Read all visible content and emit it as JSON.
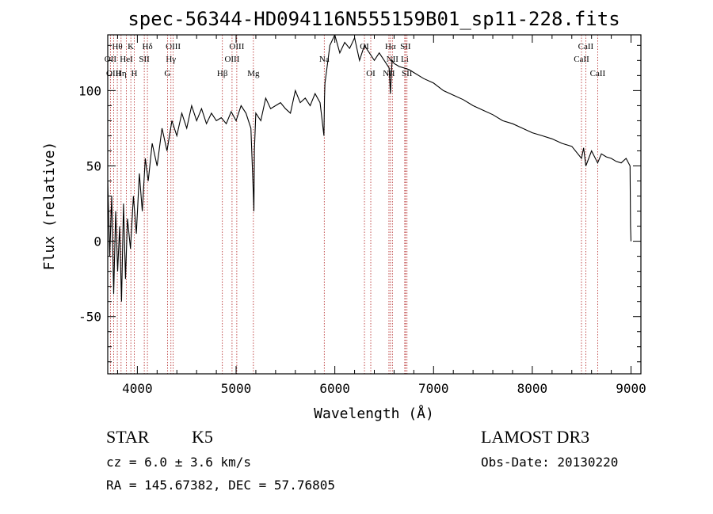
{
  "chart_data": {
    "type": "line",
    "title": "spec-56344-HD094116N555159B01_sp11-228.fits",
    "xlabel": "Wavelength (Å)",
    "ylabel": "Flux (relative)",
    "xlim": [
      3700,
      9100
    ],
    "ylim": [
      -88,
      137
    ],
    "x_ticks": [
      4000,
      5000,
      6000,
      7000,
      8000,
      9000
    ],
    "x_tick_labels": [
      "4000",
      "5000",
      "6000",
      "7000",
      "8000",
      "9000"
    ],
    "y_ticks": [
      -50,
      0,
      50,
      100
    ],
    "y_tick_labels": [
      "-50",
      "0",
      "50",
      "100"
    ],
    "series": [
      {
        "name": "flux",
        "x": [
          3700,
          3720,
          3740,
          3760,
          3780,
          3800,
          3820,
          3840,
          3860,
          3880,
          3900,
          3930,
          3960,
          3990,
          4020,
          4050,
          4080,
          4110,
          4150,
          4200,
          4250,
          4300,
          4350,
          4400,
          4450,
          4500,
          4550,
          4600,
          4650,
          4700,
          4750,
          4800,
          4850,
          4900,
          4950,
          5000,
          5050,
          5100,
          5150,
          5170,
          5180,
          5185,
          5200,
          5250,
          5300,
          5350,
          5400,
          5450,
          5500,
          5550,
          5600,
          5650,
          5700,
          5750,
          5800,
          5850,
          5890,
          5895,
          5900,
          5920,
          5950,
          6000,
          6050,
          6100,
          6150,
          6200,
          6250,
          6300,
          6350,
          6400,
          6450,
          6500,
          6550,
          6563,
          6580,
          6600,
          6650,
          6700,
          6750,
          6800,
          6900,
          7000,
          7100,
          7200,
          7300,
          7400,
          7500,
          7600,
          7700,
          7800,
          7900,
          8000,
          8100,
          8200,
          8300,
          8400,
          8498,
          8520,
          8542,
          8600,
          8662,
          8700,
          8750,
          8800,
          8850,
          8900,
          8950,
          8990,
          8995,
          9000
        ],
        "y": [
          40,
          -10,
          30,
          -35,
          20,
          -20,
          10,
          -40,
          25,
          -25,
          15,
          -5,
          30,
          5,
          45,
          20,
          55,
          40,
          65,
          50,
          75,
          60,
          80,
          70,
          85,
          75,
          90,
          80,
          88,
          78,
          85,
          80,
          82,
          78,
          86,
          80,
          90,
          85,
          75,
          40,
          20,
          60,
          85,
          80,
          95,
          88,
          90,
          92,
          88,
          85,
          100,
          92,
          95,
          90,
          98,
          92,
          70,
          95,
          105,
          115,
          130,
          137,
          125,
          132,
          128,
          135,
          120,
          130,
          125,
          120,
          125,
          120,
          115,
          98,
          120,
          118,
          116,
          115,
          114,
          112,
          108,
          105,
          100,
          97,
          94,
          90,
          87,
          84,
          80,
          78,
          75,
          72,
          70,
          68,
          65,
          63,
          55,
          62,
          50,
          60,
          52,
          58,
          56,
          55,
          53,
          52,
          55,
          50,
          10,
          0
        ]
      }
    ],
    "line_markers": [
      {
        "label": "Hθ",
        "x": 3797,
        "row": 1
      },
      {
        "label": "OII",
        "x": 3727,
        "row": 2
      },
      {
        "label": "OIII",
        "x": 3760,
        "row": 3
      },
      {
        "label": "Hη",
        "x": 3835,
        "row": 3
      },
      {
        "label": "HeI",
        "x": 3889,
        "row": 2
      },
      {
        "label": "K",
        "x": 3934,
        "row": 1
      },
      {
        "label": "H",
        "x": 3969,
        "row": 3
      },
      {
        "label": "SII",
        "x": 4070,
        "row": 2
      },
      {
        "label": "Hδ",
        "x": 4102,
        "row": 1
      },
      {
        "label": "OIII",
        "x": 4363,
        "row": 1
      },
      {
        "label": "Hγ",
        "x": 4340,
        "row": 2
      },
      {
        "label": "G",
        "x": 4305,
        "row": 3
      },
      {
        "label": "Hβ",
        "x": 4861,
        "row": 3
      },
      {
        "label": "OIII",
        "x": 5007,
        "row": 1
      },
      {
        "label": "OIII",
        "x": 4959,
        "row": 2
      },
      {
        "label": "Mg",
        "x": 5175,
        "row": 3
      },
      {
        "label": "Na",
        "x": 5893,
        "row": 2
      },
      {
        "label": "OI",
        "x": 6300,
        "row": 1
      },
      {
        "label": "OI",
        "x": 6364,
        "row": 3
      },
      {
        "label": "Hα",
        "x": 6563,
        "row": 1
      },
      {
        "label": "SII",
        "x": 6716,
        "row": 1
      },
      {
        "label": "NII",
        "x": 6583,
        "row": 2
      },
      {
        "label": "Li",
        "x": 6708,
        "row": 2
      },
      {
        "label": "NII",
        "x": 6548,
        "row": 3
      },
      {
        "label": "SII",
        "x": 6731,
        "row": 3
      },
      {
        "label": "CaII",
        "x": 8542,
        "row": 1
      },
      {
        "label": "CaII",
        "x": 8498,
        "row": 2
      },
      {
        "label": "CaII",
        "x": 8662,
        "row": 3
      }
    ]
  },
  "info": {
    "class": "STAR",
    "subclass": "K5",
    "survey": "LAMOST DR3",
    "cz": "cz = 6.0 ± 3.6 km/s",
    "obs_date": "Obs-Date: 20130220",
    "radec": "RA = 145.67382, DEC =  57.76805"
  }
}
